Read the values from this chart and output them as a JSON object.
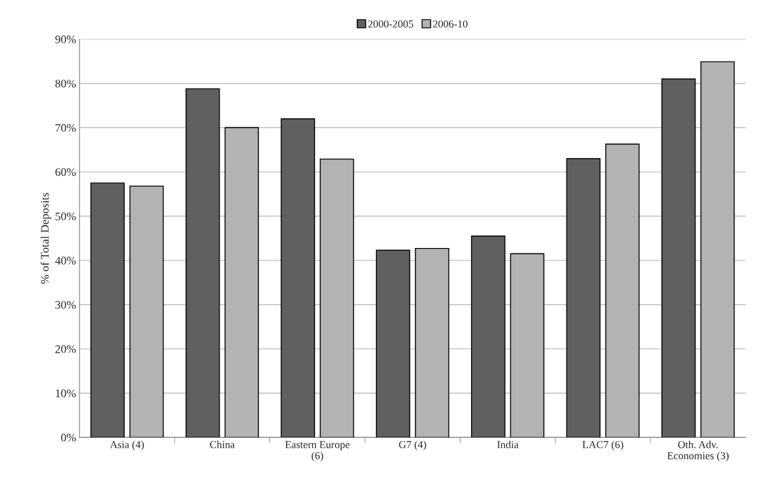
{
  "chart_data": {
    "type": "bar",
    "ylabel": "% of Total Deposits",
    "categories": [
      "Asia (4)",
      "China",
      "Eastern Europe\n(6)",
      "G7 (4)",
      "India",
      "LAC7 (6)",
      "Oth. Adv.\nEconomies (3)"
    ],
    "series": [
      {
        "name": "2000-2005",
        "color": "#606060",
        "values": [
          57.5,
          78.8,
          72.0,
          42.3,
          45.5,
          63.0,
          81.0
        ]
      },
      {
        "name": "2006-10",
        "color": "#b3b3b3",
        "values": [
          56.8,
          70.0,
          62.9,
          42.7,
          41.5,
          66.3,
          84.9
        ]
      }
    ],
    "ylim": [
      0,
      90
    ],
    "yticks": [
      {
        "value": 0,
        "label": "0%"
      },
      {
        "value": 10,
        "label": "10%"
      },
      {
        "value": 20,
        "label": "20%"
      },
      {
        "value": 30,
        "label": "30%"
      },
      {
        "value": 40,
        "label": "40%"
      },
      {
        "value": 50,
        "label": "50%"
      },
      {
        "value": 60,
        "label": "60%"
      },
      {
        "value": 70,
        "label": "70%"
      },
      {
        "value": 80,
        "label": "80%"
      },
      {
        "value": 90,
        "label": "90%"
      }
    ],
    "grid": "y",
    "legend": "top"
  }
}
